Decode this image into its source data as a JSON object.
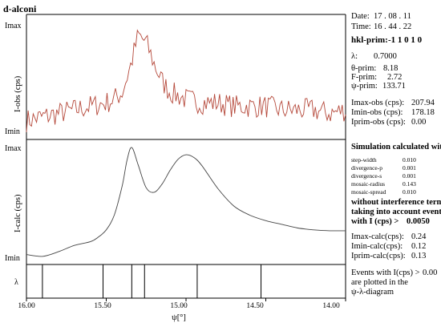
{
  "window": {
    "title": "d-alconi"
  },
  "plot": {
    "obs_panel": {
      "ymax_label": "Imax",
      "ymin_label": "Imin",
      "ylabel": "I-obs (cps)"
    },
    "calc_panel": {
      "ymax_label": "Imax",
      "ymin_label": "Imin",
      "ylabel": "I-calc (cps)"
    },
    "lambda_panel": {
      "label": "λ"
    },
    "xlabel": "ψ[°]",
    "x_ticks": [
      "16.00",
      "15.50",
      "15.00",
      "14.50",
      "14.00"
    ]
  },
  "chart_data": {
    "type": "line",
    "x_range": [
      16.0,
      14.0
    ],
    "x_ticks": [
      16.0,
      15.5,
      15.0,
      14.5,
      14.0
    ],
    "xlabel": "ψ[°]",
    "observed": {
      "ylabel": "I-obs (cps)",
      "ymin": 178.18,
      "ymax": 207.94,
      "x": [
        16.0,
        15.9,
        15.8,
        15.7,
        15.6,
        15.5,
        15.45,
        15.4,
        15.35,
        15.3,
        15.25,
        15.2,
        15.15,
        15.1,
        15.0,
        14.9,
        14.8,
        14.7,
        14.6,
        14.5,
        14.4,
        14.3,
        14.2,
        14.1,
        14.0
      ],
      "values": [
        181,
        182,
        183,
        184,
        185,
        186,
        187,
        189,
        196,
        205,
        203,
        197,
        192,
        189,
        187,
        186,
        186,
        185,
        185,
        185,
        184,
        184,
        184,
        183,
        184
      ]
    },
    "calculated": {
      "ylabel": "I-calc (cps)",
      "ymin": 0.12,
      "ymax": 0.24,
      "x": [
        16.0,
        15.9,
        15.8,
        15.7,
        15.6,
        15.55,
        15.5,
        15.45,
        15.4,
        15.37,
        15.34,
        15.3,
        15.25,
        15.2,
        15.15,
        15.1,
        15.05,
        15.0,
        14.95,
        14.9,
        14.8,
        14.7,
        14.6,
        14.5,
        14.4,
        14.3,
        14.2,
        14.1,
        14.0
      ],
      "values": [
        0.123,
        0.121,
        0.126,
        0.133,
        0.137,
        0.142,
        0.15,
        0.166,
        0.198,
        0.226,
        0.24,
        0.221,
        0.196,
        0.191,
        0.2,
        0.215,
        0.227,
        0.232,
        0.229,
        0.22,
        0.195,
        0.176,
        0.166,
        0.16,
        0.156,
        0.152,
        0.15,
        0.149,
        0.149
      ]
    },
    "lambda_lines_x": [
      15.9,
      15.52,
      15.34,
      15.26,
      14.93,
      14.53
    ]
  },
  "info": {
    "date_label": "Date:",
    "date_value": "17 . 08 . 11",
    "time_label": "Time:",
    "time_value": "16 . 44 . 22",
    "hkl_label": "hkl-prim:",
    "hkl_value": "-1  1  0  1  0",
    "lambda_label": "λ:",
    "lambda_value": "0.7000",
    "theta_label": "θ-prim:",
    "theta_value": "8.18",
    "f_label": "F-prim:",
    "f_value": "2.72",
    "psi_label": "ψ-prim:",
    "psi_value": "133.71",
    "imax_obs_label": "Imax-obs (cps):",
    "imax_obs_value": "207.94",
    "imin_obs_label": "Imin-obs (cps):",
    "imin_obs_value": "178.18",
    "iprim_obs_label": "Iprim-obs (cps):",
    "iprim_obs_value": "0.00",
    "sim_title": "Simulation calculated with",
    "params": [
      {
        "name": "step-width",
        "value": "0.010"
      },
      {
        "name": "divergence-p",
        "value": "0.001"
      },
      {
        "name": "divergence-s",
        "value": "0.001"
      },
      {
        "name": "mosaic-radius",
        "value": "0.143"
      },
      {
        "name": "mosaic-spread",
        "value": "0.010"
      }
    ],
    "note_line1": "without interference term,",
    "note_line2": "taking into account events",
    "note_line3": "with I (cps) >",
    "note_value": "0.0050",
    "imax_calc_label": "Imax-calc(cps):",
    "imax_calc_value": "0.24",
    "imin_calc_label": "Imin-calc(cps):",
    "imin_calc_value": "0.12",
    "iprim_calc_label": "Iprim-calc(cps):",
    "iprim_calc_value": "0.13",
    "events_line1": "Events with I(cps) >",
    "events_value": "0.00",
    "events_line2": "are plotted in the",
    "events_line3": "ψ-λ-diagram"
  },
  "colors": {
    "observed_line": "#b5483a",
    "calc_line": "#444444",
    "frame": "#000000"
  }
}
